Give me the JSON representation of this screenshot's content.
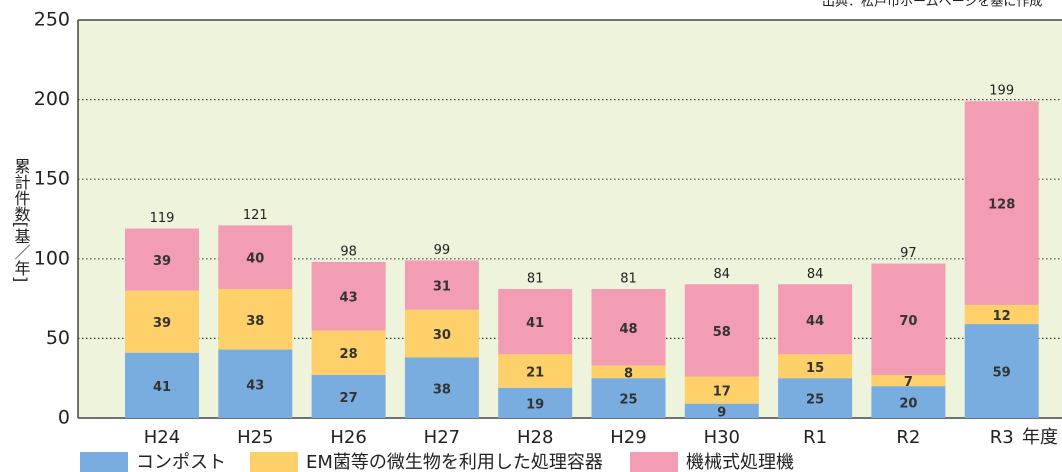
{
  "chart_data": {
    "type": "stacked_bar",
    "source": "出典：松戸市ホームページを基に作成",
    "y_label": "累計件数[基／年]",
    "x_label": "年度",
    "categories": [
      "H24",
      "H25",
      "H26",
      "H27",
      "H28",
      "H29",
      "H30",
      "R1",
      "R2",
      "R3"
    ],
    "series": [
      {
        "name": "コンポスト",
        "color": "#7aaddf",
        "values": [
          41,
          43,
          27,
          38,
          19,
          25,
          9,
          25,
          20,
          59
        ]
      },
      {
        "name": "EM菌等の微生物を利用した処理容器",
        "color": "#fdd06a",
        "values": [
          39,
          38,
          28,
          30,
          21,
          8,
          17,
          15,
          7,
          12
        ]
      },
      {
        "name": "機械式処理機",
        "color": "#f29db3",
        "values": [
          39,
          40,
          43,
          31,
          41,
          48,
          58,
          44,
          70,
          128
        ]
      }
    ],
    "totals": [
      119,
      121,
      98,
      99,
      81,
      81,
      84,
      84,
      97,
      199
    ],
    "ylim": [
      0,
      250
    ],
    "yticks": [
      0,
      50,
      100,
      150,
      200,
      250
    ],
    "grid": true
  }
}
